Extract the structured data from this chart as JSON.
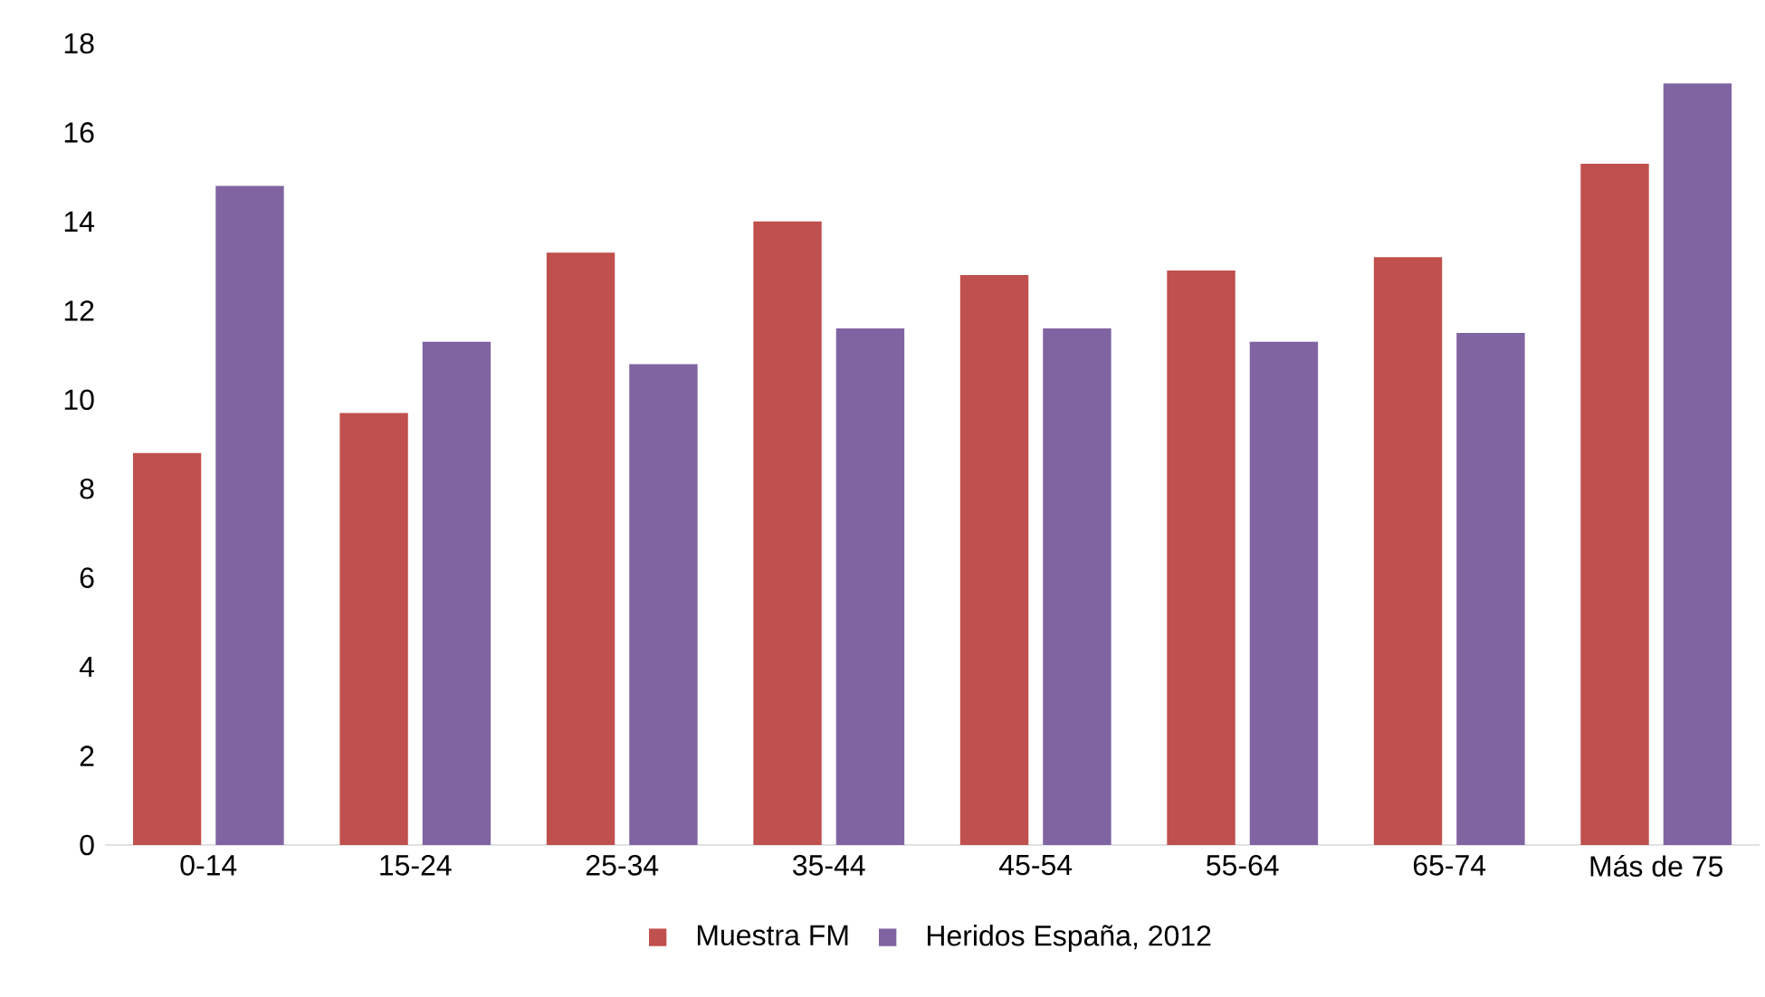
{
  "chart_data": {
    "type": "bar",
    "categories": [
      "0-14",
      "15-24",
      "25-34",
      "35-44",
      "45-54",
      "55-64",
      "65-74",
      "Más de 75"
    ],
    "series": [
      {
        "name": "Muestra FM",
        "color": "#c0504d",
        "values": [
          8.8,
          9.7,
          13.3,
          14.0,
          12.8,
          12.9,
          13.2,
          15.3
        ]
      },
      {
        "name": "Heridos España, 2012",
        "color": "#8064a2",
        "values": [
          14.8,
          11.3,
          10.8,
          11.6,
          11.6,
          11.3,
          11.5,
          17.1
        ]
      }
    ],
    "ylim": [
      0,
      18
    ],
    "yticks": [
      0,
      2,
      4,
      6,
      8,
      10,
      12,
      14,
      16,
      18
    ],
    "legend": "bottom"
  }
}
